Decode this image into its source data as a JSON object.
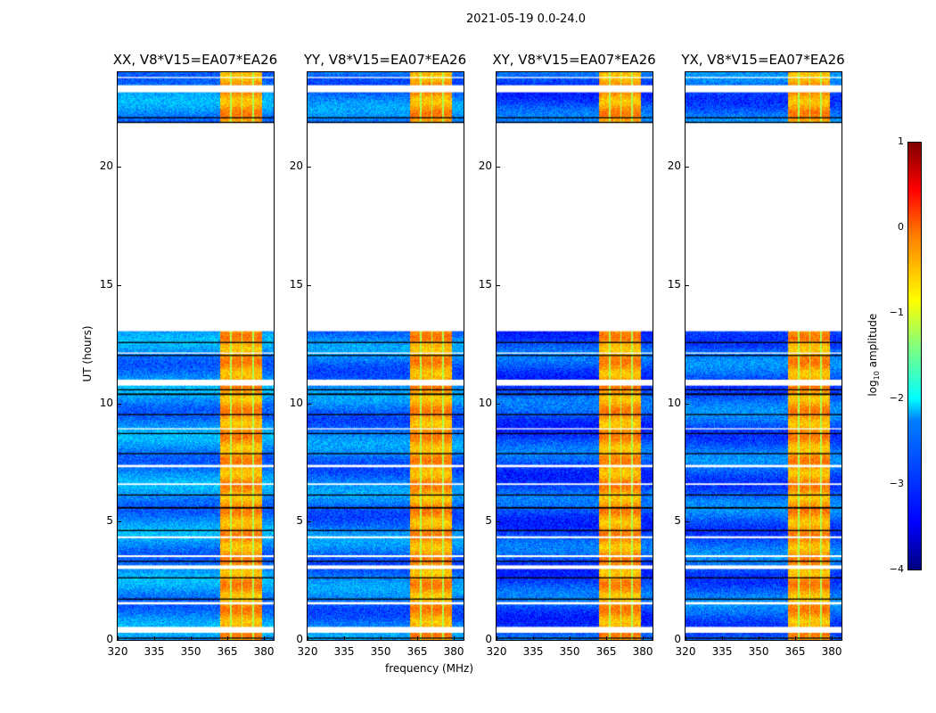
{
  "title": "2021-05-19 0.0-24.0",
  "chart_data": {
    "type": "heatmap",
    "title": "2021-05-19 0.0-24.0",
    "xlabel": "frequency (MHz)",
    "ylabel": "UT (hours)",
    "xlim": [
      320,
      384
    ],
    "ylim": [
      0,
      24
    ],
    "xticks": [
      "320",
      "335",
      "350",
      "365",
      "380"
    ],
    "xtick_values": [
      320,
      335,
      350,
      365,
      380
    ],
    "yticks": [
      "0",
      "5",
      "10",
      "15",
      "20"
    ],
    "ytick_values": [
      0,
      5,
      10,
      15,
      20
    ],
    "panels": [
      {
        "title": "XX, V8*V15=EA07*EA26",
        "baseline": -2.7
      },
      {
        "title": "YY, V8*V15=EA07*EA26",
        "baseline": -2.8
      },
      {
        "title": "XY, V8*V15=EA07*EA26",
        "baseline": -3.0
      },
      {
        "title": "YX, V8*V15=EA07*EA26",
        "baseline": -2.9
      }
    ],
    "bright_band_mhz": [
      362,
      379
    ],
    "bright_level": -0.4,
    "no_data_hours": [
      13.05,
      21.85
    ],
    "flagged_hours_white": [
      [
        0.3,
        0.55
      ],
      [
        1.5,
        1.6
      ],
      [
        3.0,
        3.15
      ],
      [
        3.5,
        3.58
      ],
      [
        4.3,
        4.38
      ],
      [
        6.55,
        6.62
      ],
      [
        7.3,
        7.4
      ],
      [
        8.9,
        8.95
      ],
      [
        10.75,
        11.0
      ],
      [
        12.1,
        12.15
      ],
      [
        23.15,
        23.45
      ],
      [
        23.75,
        23.8
      ]
    ],
    "flagged_hours_black": [
      [
        0.05,
        0.1
      ],
      [
        1.7,
        1.75
      ],
      [
        2.6,
        2.65
      ],
      [
        3.3,
        3.35
      ],
      [
        4.6,
        4.65
      ],
      [
        5.55,
        5.62
      ],
      [
        6.1,
        6.15
      ],
      [
        7.85,
        7.9
      ],
      [
        8.7,
        8.75
      ],
      [
        9.5,
        9.55
      ],
      [
        10.35,
        10.42
      ],
      [
        10.55,
        10.6
      ],
      [
        12.0,
        12.05
      ],
      [
        12.55,
        12.6
      ],
      [
        21.85,
        21.9
      ],
      [
        22.05,
        22.1
      ]
    ],
    "colorbar": {
      "label": "log10 amplitude",
      "ticks": [
        "1",
        "0",
        "−1",
        "−2",
        "−3",
        "−4"
      ],
      "range": [
        -4,
        1
      ]
    }
  }
}
